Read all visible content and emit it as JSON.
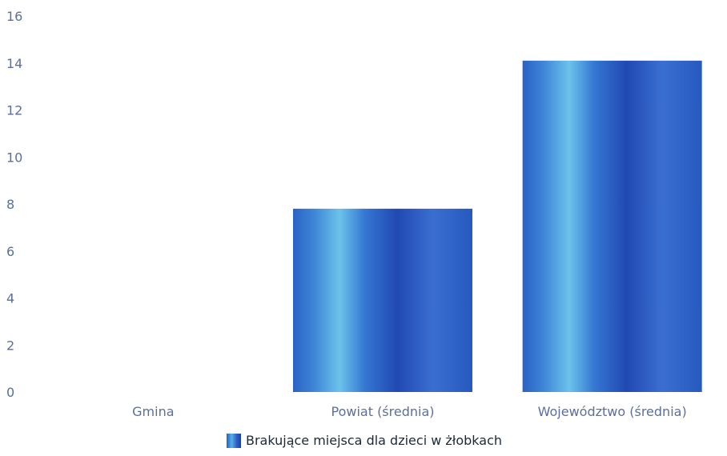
{
  "chart_data": {
    "type": "bar",
    "categories": [
      "Gmina",
      "Powiat (średnia)",
      "Województwo (średnia)"
    ],
    "series": [
      {
        "name": "Brakujące miejsca dla dzieci w żłobkach",
        "values": [
          0,
          7.8,
          14.1
        ]
      }
    ],
    "ylim": [
      0,
      16
    ],
    "yticks": [
      0,
      2,
      4,
      6,
      8,
      10,
      12,
      14,
      16
    ],
    "grid": false,
    "legend": "bottom-center",
    "colors": {
      "bar_dark": "#1f4fb8",
      "bar_light": "#6bc3ea",
      "tick_text": "#5b6f9e"
    }
  }
}
